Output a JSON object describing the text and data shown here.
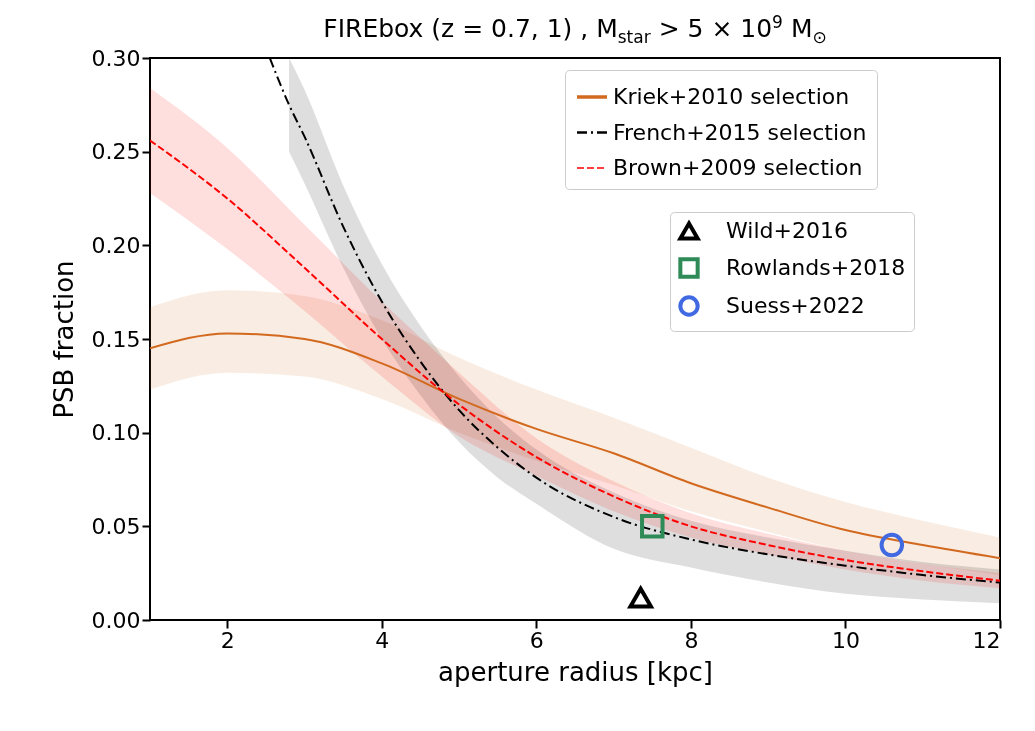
{
  "chart_data": {
    "type": "line",
    "title": "FIREbox (z = 0.7, 1) , M$_{star}$ > 5 × 10$^{9}$ M$_{⊙}$",
    "xlabel": "aperture radius [kpc]",
    "ylabel": "PSB fraction",
    "xlim": [
      1,
      12
    ],
    "xticks": [
      2,
      4,
      6,
      8,
      10,
      12
    ],
    "ylim": [
      0,
      0.3
    ],
    "yticks": [
      {
        "value": 0,
        "label": "0.00"
      },
      {
        "value": 0.05,
        "label": "0.05"
      },
      {
        "value": 0.1,
        "label": "0.10"
      },
      {
        "value": 0.15,
        "label": "0.15"
      },
      {
        "value": 0.2,
        "label": "0.20"
      },
      {
        "value": 0.25,
        "label": "0.25"
      },
      {
        "value": 0.3,
        "label": "0.30"
      }
    ],
    "grid": false,
    "legend": "top right",
    "series": [
      {
        "name": "Kriek+2010 selection",
        "color": "#d2691e",
        "line_style": "solid",
        "marker": "none",
        "x": [
          1,
          2,
          3,
          4,
          5,
          6,
          7,
          8,
          9,
          10,
          11,
          12
        ],
        "values": [
          0.145,
          0.153,
          0.15,
          0.137,
          0.118,
          0.102,
          0.089,
          0.073,
          0.06,
          0.048,
          0.04,
          0.033
        ],
        "lower": [
          0.123,
          0.132,
          0.13,
          0.118,
          0.1,
          0.085,
          0.072,
          0.058,
          0.047,
          0.037,
          0.03,
          0.024
        ],
        "upper": [
          0.167,
          0.176,
          0.173,
          0.16,
          0.14,
          0.123,
          0.108,
          0.092,
          0.076,
          0.063,
          0.053,
          0.044
        ]
      },
      {
        "name": "French+2015 selection",
        "color": "#000000",
        "line_style": "dashdot",
        "marker": "none",
        "x": [
          2.55,
          2.8,
          3,
          3.5,
          4,
          4.5,
          5,
          5.5,
          6,
          7,
          8,
          9,
          10,
          11,
          12
        ],
        "values": [
          0.3,
          0.275,
          0.258,
          0.21,
          0.17,
          0.138,
          0.112,
          0.092,
          0.076,
          0.055,
          0.043,
          0.035,
          0.029,
          0.024,
          0.02
        ],
        "lower": [
          null,
          0.25,
          0.233,
          0.188,
          0.15,
          0.12,
          0.095,
          0.076,
          0.062,
          0.038,
          0.028,
          0.02,
          0.014,
          0.011,
          0.009
        ],
        "upper": [
          null,
          0.3,
          0.283,
          0.232,
          0.19,
          0.157,
          0.13,
          0.108,
          0.091,
          0.068,
          0.053,
          0.044,
          0.037,
          0.031,
          0.027
        ]
      },
      {
        "name": "Brown+2009 selection",
        "color": "#ff0000",
        "line_style": "dashed",
        "marker": "none",
        "x": [
          1,
          2,
          3,
          4,
          5,
          6,
          7,
          8,
          9,
          10,
          11,
          12
        ],
        "values": [
          0.256,
          0.225,
          0.188,
          0.15,
          0.115,
          0.087,
          0.066,
          0.05,
          0.04,
          0.032,
          0.026,
          0.021
        ],
        "lower": [
          0.228,
          0.198,
          0.165,
          0.13,
          0.098,
          0.077,
          0.058,
          0.044,
          0.035,
          0.027,
          0.021,
          0.017
        ],
        "upper": [
          0.284,
          0.252,
          0.211,
          0.17,
          0.132,
          0.097,
          0.074,
          0.057,
          0.046,
          0.037,
          0.03,
          0.025
        ]
      },
      {
        "name": "Wild+2016",
        "type": "scatter",
        "color": "#000000",
        "marker": "triangle",
        "x": [
          7.35
        ],
        "values": [
          0.012
        ]
      },
      {
        "name": "Rowlands+2018",
        "type": "scatter",
        "color": "#2e8b57",
        "marker": "square",
        "x": [
          7.5
        ],
        "values": [
          0.05
        ]
      },
      {
        "name": "Suess+2022",
        "type": "scatter",
        "color": "#4169e1",
        "marker": "circle",
        "x": [
          10.6
        ],
        "values": [
          0.04
        ]
      }
    ]
  }
}
